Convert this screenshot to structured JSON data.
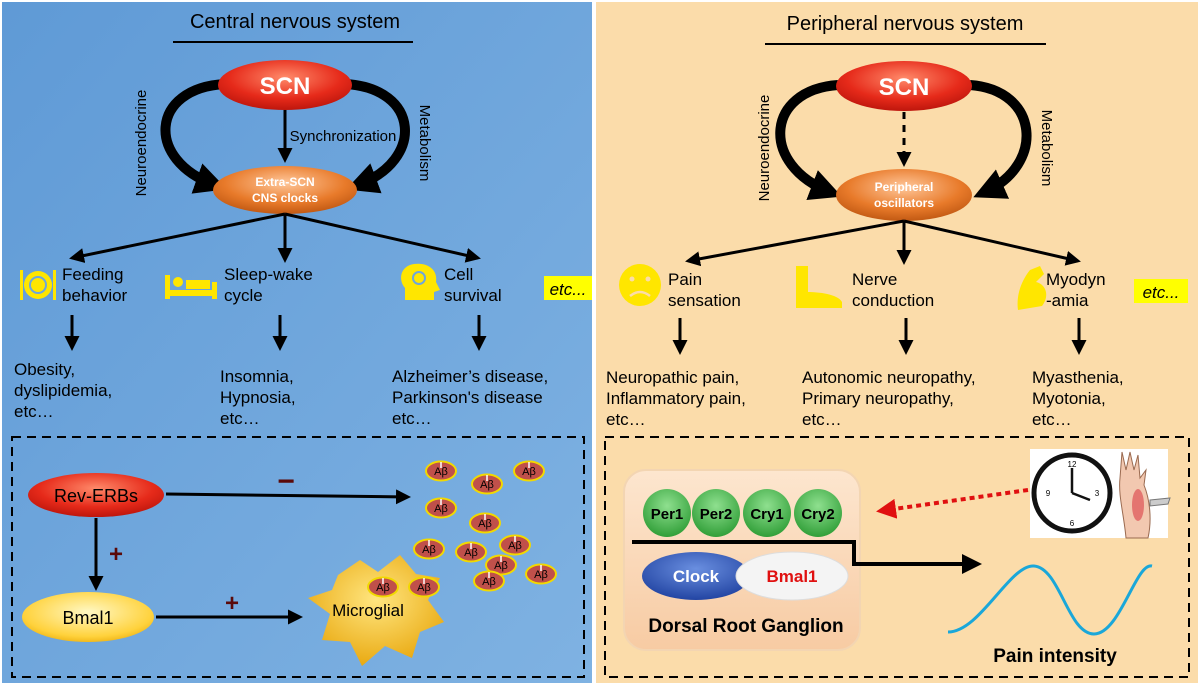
{
  "colors": {
    "cns_bg": "#6ea6dc",
    "pns_bg": "#fbdcaa",
    "scn_red": "#e02020",
    "osc_orange": "#e0701c",
    "icon_yellow": "#ffe600",
    "etc_highlight": "#ffff00",
    "pain_curve": "#1aa7d9"
  },
  "cns": {
    "title": "Central nervous system",
    "scn": "SCN",
    "synchronization": "Synchronization",
    "neuroendocrine": "Neuroendocrine",
    "metabolism": "Metabolism",
    "oscillator_line1": "Extra-SCN",
    "oscillator_line2": "CNS clocks",
    "branches": [
      {
        "icon": "food-plate-icon",
        "label_line1": "Feeding",
        "label_line2": "behavior",
        "outcome_line1": "Obesity,",
        "outcome_line2": "dyslipidemia,",
        "outcome_line3": "etc…"
      },
      {
        "icon": "bed-icon",
        "label_line1": "Sleep-wake",
        "label_line2": "cycle",
        "outcome_line1": "Insomnia,",
        "outcome_line2": "Hypnosia,",
        "outcome_line3": "etc…"
      },
      {
        "icon": "brain-head-icon",
        "label_line1": "Cell",
        "label_line2": "survival",
        "outcome_line1": "Alzheimer’s disease,",
        "outcome_line2": "Parkinson's disease",
        "outcome_line3": "etc…"
      }
    ],
    "etc": "etc...",
    "mechanism": {
      "rev_erbs": "Rev-ERBs",
      "bmal1": "Bmal1",
      "microglial": "Microglial",
      "minus": "−",
      "plus": "+",
      "abeta": "Aβ"
    }
  },
  "pns": {
    "title": "Peripheral nervous system",
    "scn": "SCN",
    "neuroendocrine": "Neuroendocrine",
    "metabolism": "Metabolism",
    "oscillator_line1": "Peripheral",
    "oscillator_line2": "oscillators",
    "branches": [
      {
        "icon": "sad-face-icon",
        "label_line1": "Pain",
        "label_line2": "sensation",
        "outcome_line1": "Neuropathic pain,",
        "outcome_line2": "Inflammatory pain,",
        "outcome_line3": "etc…"
      },
      {
        "icon": "foot-icon",
        "label_line1": "Nerve",
        "label_line2": "conduction",
        "outcome_line1": "Autonomic neuropathy,",
        "outcome_line2": "Primary neuropathy,",
        "outcome_line3": "etc…"
      },
      {
        "icon": "muscle-arm-icon",
        "label_line1": "Myodyn",
        "label_line2": "-amia",
        "outcome_line1": "Myasthenia,",
        "outcome_line2": "Myotonia,",
        "outcome_line3": "etc…"
      }
    ],
    "etc": "etc...",
    "mechanism": {
      "genes": [
        "Per1",
        "Per2",
        "Cry1",
        "Cry2"
      ],
      "clock": "Clock",
      "bmal1": "Bmal1",
      "drg": "Dorsal Root Ganglion",
      "pain_intensity": "Pain intensity"
    }
  }
}
